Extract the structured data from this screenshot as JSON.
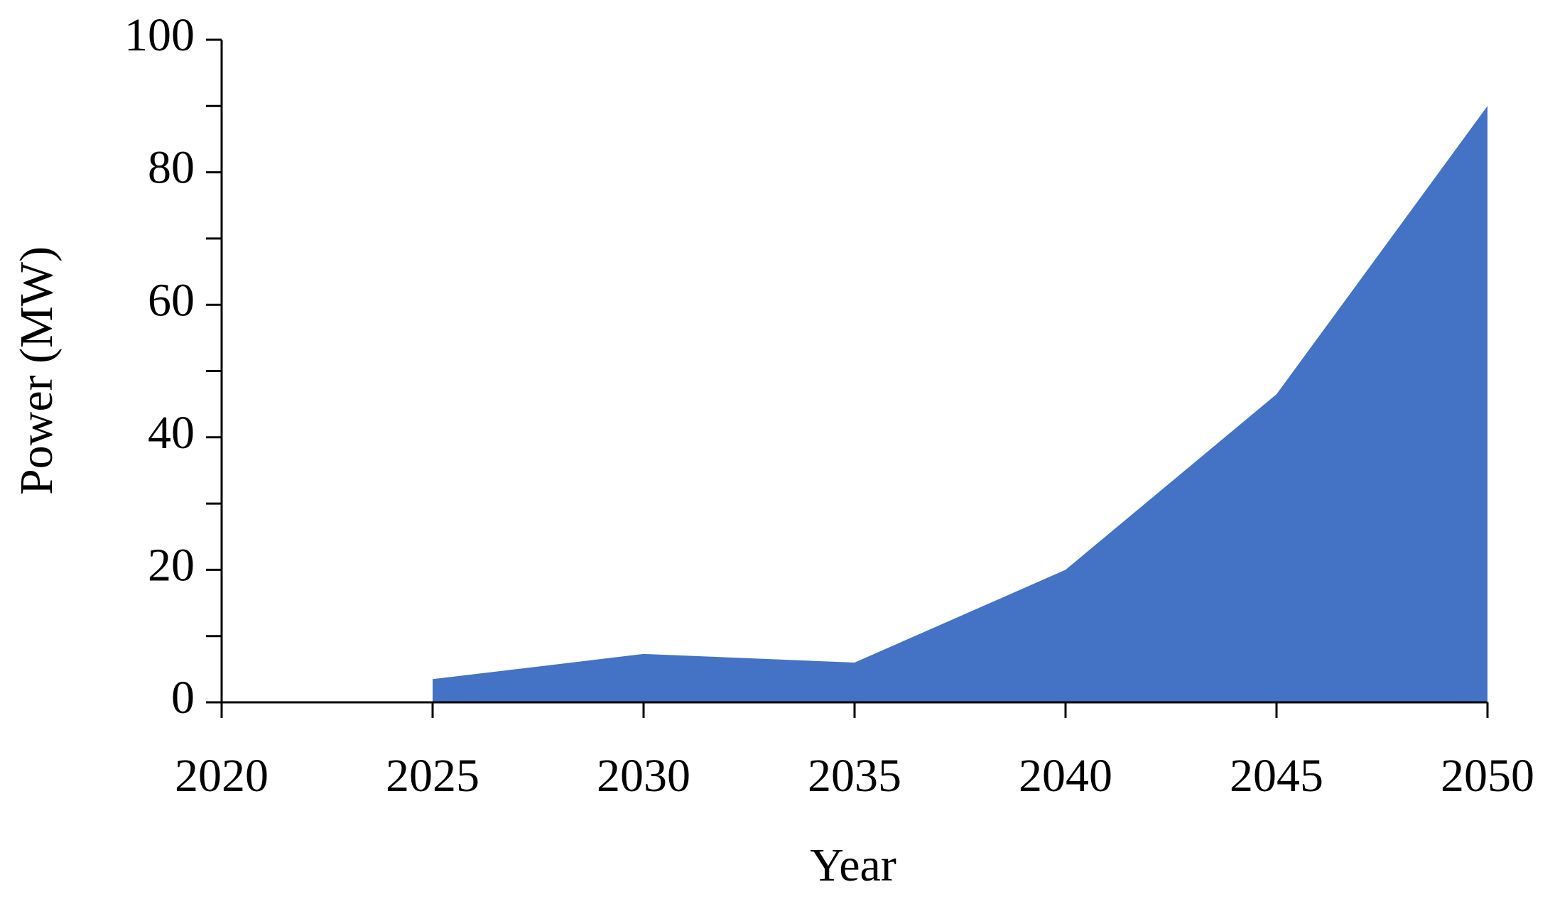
{
  "chart_data": {
    "type": "area",
    "x_label": "Year",
    "y_label": "Power (MW)",
    "x": [
      2025,
      2030,
      2035,
      2040,
      2045,
      2050
    ],
    "values": [
      3.5,
      7.3,
      6,
      20,
      46.5,
      90
    ],
    "color": "#4472c4",
    "xlim": [
      2020,
      2050
    ],
    "xticks": [
      2020,
      2025,
      2030,
      2035,
      2040,
      2045,
      2050
    ],
    "ylim": [
      0,
      100
    ],
    "yticks": [
      0,
      20,
      40,
      60,
      80,
      100
    ],
    "yminorticks": [
      10,
      30,
      50,
      70,
      90
    ],
    "grid": false
  }
}
